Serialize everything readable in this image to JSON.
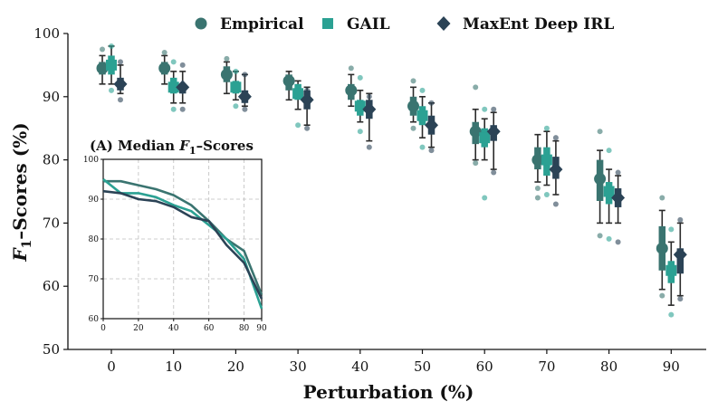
{
  "chart_data": [
    {
      "type": "box",
      "title": "",
      "xlabel": "Perturbation (%)",
      "ylabel": "F1–Scores (%)",
      "ylabel_parts": {
        "main": "F",
        "sub": "1",
        "rest": "–Scores (%)"
      },
      "ylim": [
        50,
        100
      ],
      "yticks": [
        "50",
        "60",
        "70",
        "80",
        "90",
        "100"
      ],
      "categories": [
        "0",
        "10",
        "20",
        "30",
        "40",
        "50",
        "60",
        "70",
        "80",
        "90"
      ],
      "legend_position": "top",
      "colors": {
        "Empirical": "#3a7470",
        "GAIL": "#2ba193",
        "MaxEnt Deep IRL": "#2b4356"
      },
      "series": [
        {
          "name": "Empirical",
          "marker": "circle",
          "median": [
            94.5,
            94.5,
            93.5,
            92.5,
            91.0,
            88.5,
            84.5,
            80.0,
            77.0,
            66.0
          ],
          "q1": [
            93.5,
            93.5,
            92.3,
            91.0,
            89.5,
            87.0,
            82.5,
            78.5,
            73.5,
            62.5
          ],
          "q3": [
            95.5,
            95.5,
            94.8,
            93.5,
            92.0,
            90.0,
            86.0,
            82.0,
            80.0,
            69.5
          ],
          "whisker_low": [
            92.0,
            92.0,
            90.5,
            89.5,
            88.5,
            86.0,
            80.0,
            76.5,
            70.0,
            59.5
          ],
          "whisker_high": [
            96.5,
            96.5,
            95.5,
            94.0,
            93.5,
            91.5,
            88.0,
            84.0,
            81.5,
            72.0
          ],
          "outliers": [
            [
              97.5
            ],
            [
              97.0
            ],
            [
              96.0
            ],
            [],
            [
              94.5
            ],
            [
              85.0,
              92.5
            ],
            [
              79.5,
              91.5
            ],
            [
              74.0,
              75.5
            ],
            [
              68.0,
              84.5
            ],
            [
              58.5,
              74.0
            ]
          ]
        },
        {
          "name": "GAIL",
          "marker": "square",
          "median": [
            95.0,
            91.5,
            91.5,
            90.5,
            88.5,
            87.0,
            83.5,
            80.0,
            75.0,
            62.5
          ],
          "q1": [
            93.5,
            90.5,
            90.5,
            89.5,
            87.0,
            85.5,
            82.0,
            77.5,
            73.0,
            60.5
          ],
          "q3": [
            96.5,
            93.0,
            92.5,
            92.0,
            89.5,
            88.5,
            85.0,
            82.0,
            76.5,
            64.0
          ],
          "whisker_low": [
            92.0,
            89.0,
            89.5,
            88.0,
            86.0,
            83.5,
            80.0,
            76.0,
            70.0,
            57.0
          ],
          "whisker_high": [
            98.0,
            94.0,
            94.0,
            92.5,
            91.0,
            90.0,
            86.5,
            84.5,
            78.5,
            67.0
          ],
          "outliers": [
            [
              91.0,
              98.0
            ],
            [
              88.0,
              95.5
            ],
            [
              88.5,
              94.0
            ],
            [
              85.5
            ],
            [
              84.5,
              93.0
            ],
            [
              82.0,
              91.0
            ],
            [
              74.0,
              88.0
            ],
            [
              74.5,
              85.0
            ],
            [
              67.5,
              81.5
            ],
            [
              55.5,
              69.0
            ]
          ]
        },
        {
          "name": "MaxEnt Deep IRL",
          "marker": "diamond",
          "median": [
            92.0,
            91.5,
            90.0,
            89.5,
            88.0,
            85.5,
            84.5,
            78.5,
            74.0,
            65.0
          ],
          "q1": [
            91.0,
            90.5,
            89.0,
            88.0,
            86.5,
            84.0,
            83.0,
            77.0,
            72.5,
            62.0
          ],
          "q3": [
            93.0,
            92.0,
            91.0,
            91.0,
            89.5,
            87.0,
            85.5,
            80.5,
            75.5,
            66.0
          ],
          "whisker_low": [
            90.5,
            89.0,
            88.5,
            85.5,
            83.0,
            82.0,
            78.5,
            74.5,
            70.0,
            58.5
          ],
          "whisker_high": [
            95.0,
            94.0,
            93.5,
            91.5,
            90.5,
            89.0,
            87.5,
            83.0,
            77.5,
            70.0
          ],
          "outliers": [
            [
              89.5,
              95.5
            ],
            [
              88.0,
              95.0
            ],
            [
              88.0,
              93.5
            ],
            [
              85.0,
              91.0
            ],
            [
              82.0,
              90.0
            ],
            [
              81.5,
              89.0
            ],
            [
              78.0,
              88.0
            ],
            [
              73.0,
              83.5
            ],
            [
              67.0,
              78.0
            ],
            [
              58.0,
              70.5
            ]
          ]
        }
      ]
    },
    {
      "type": "line",
      "title": "(A) Median F1–Scores",
      "title_parts": {
        "prefix": "(A) Median ",
        "main": "F",
        "sub": "1",
        "rest": "–Scores"
      },
      "x": [
        0,
        10,
        20,
        30,
        40,
        50,
        60,
        70,
        80,
        90
      ],
      "xticks": [
        "0",
        "20",
        "40",
        "60",
        "80",
        "90"
      ],
      "yticks": [
        "60",
        "70",
        "80",
        "90",
        "100"
      ],
      "xlim": [
        0,
        90
      ],
      "ylim": [
        60,
        100
      ],
      "grid": true,
      "series": [
        {
          "name": "Empirical",
          "values": [
            94.5,
            94.5,
            93.5,
            92.5,
            91.0,
            88.5,
            84.5,
            80.0,
            77.0,
            66.0
          ]
        },
        {
          "name": "GAIL",
          "values": [
            95.0,
            91.5,
            91.5,
            90.5,
            88.5,
            87.0,
            83.5,
            80.0,
            75.0,
            62.5
          ]
        },
        {
          "name": "MaxEnt Deep IRL",
          "values": [
            92.0,
            91.5,
            90.0,
            89.5,
            88.0,
            85.5,
            84.5,
            78.5,
            74.0,
            65.0
          ]
        }
      ]
    }
  ]
}
